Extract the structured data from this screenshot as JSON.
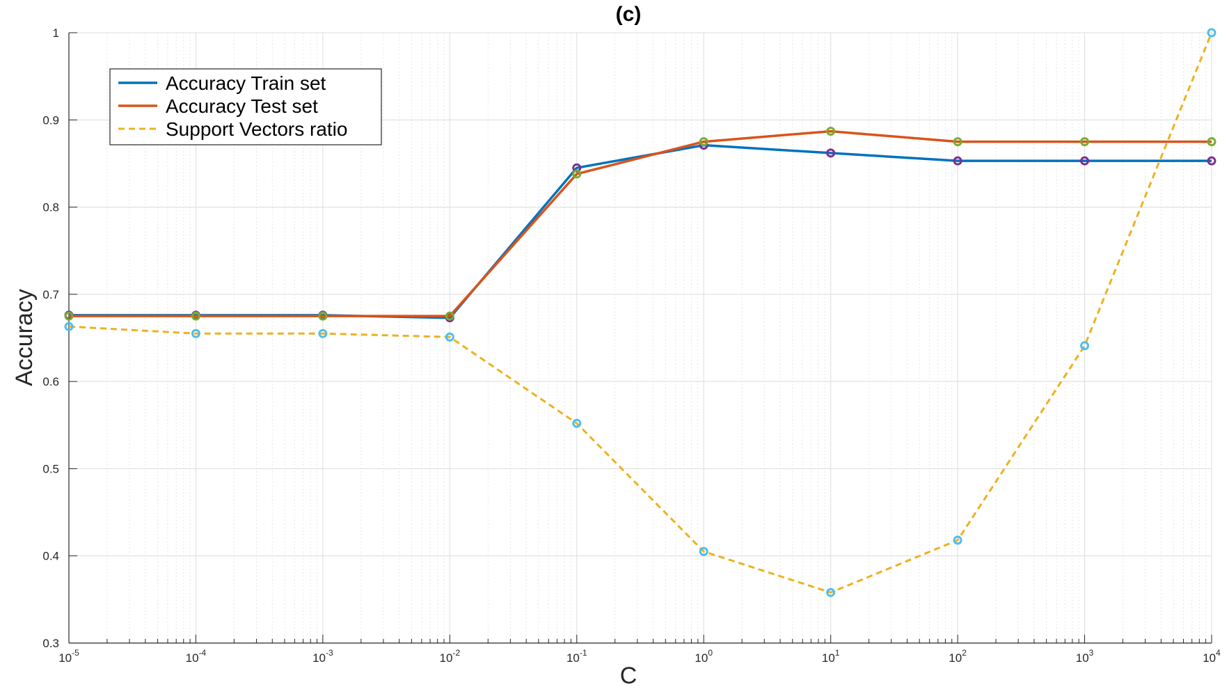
{
  "chart_data": {
    "type": "line",
    "title": "(c)",
    "xlabel": "C",
    "ylabel": "Accuracy",
    "x_scale": "log",
    "x": [
      1e-05,
      0.0001,
      0.001,
      0.01,
      0.1,
      1,
      10,
      100,
      1000,
      10000
    ],
    "x_tick_labels": [
      {
        "base": "10",
        "exp": "-5"
      },
      {
        "base": "10",
        "exp": "-4"
      },
      {
        "base": "10",
        "exp": "-3"
      },
      {
        "base": "10",
        "exp": "-2"
      },
      {
        "base": "10",
        "exp": "-1"
      },
      {
        "base": "10",
        "exp": "0"
      },
      {
        "base": "10",
        "exp": "1"
      },
      {
        "base": "10",
        "exp": "2"
      },
      {
        "base": "10",
        "exp": "3"
      },
      {
        "base": "10",
        "exp": "4"
      }
    ],
    "xlim": [
      1e-05,
      10000
    ],
    "ylim": [
      0.3,
      1
    ],
    "y_ticks": [
      0.3,
      0.4,
      0.5,
      0.6,
      0.7,
      0.8,
      0.9,
      1
    ],
    "y_tick_labels": [
      "0.3",
      "0.4",
      "0.5",
      "0.6",
      "0.7",
      "0.8",
      "0.9",
      "1"
    ],
    "grid": true,
    "legend_position": "top-left",
    "series": [
      {
        "name": "Accuracy Train set",
        "color": "#0072BD",
        "style": "solid",
        "marker_color": "#7E2F8E",
        "values": [
          0.676,
          0.676,
          0.676,
          0.673,
          0.845,
          0.871,
          0.862,
          0.853,
          0.853,
          0.853
        ]
      },
      {
        "name": "Accuracy Test set",
        "color": "#D95319",
        "style": "solid",
        "marker_color": "#77AC30",
        "values": [
          0.675,
          0.675,
          0.675,
          0.675,
          0.838,
          0.875,
          0.887,
          0.875,
          0.875,
          0.875
        ]
      },
      {
        "name": "Support Vectors ratio",
        "color": "#EDB120",
        "style": "dashed",
        "marker_color": "#4DBEEE",
        "values": [
          0.663,
          0.655,
          0.655,
          0.651,
          0.552,
          0.405,
          0.358,
          0.418,
          0.641,
          1.0
        ]
      }
    ]
  }
}
